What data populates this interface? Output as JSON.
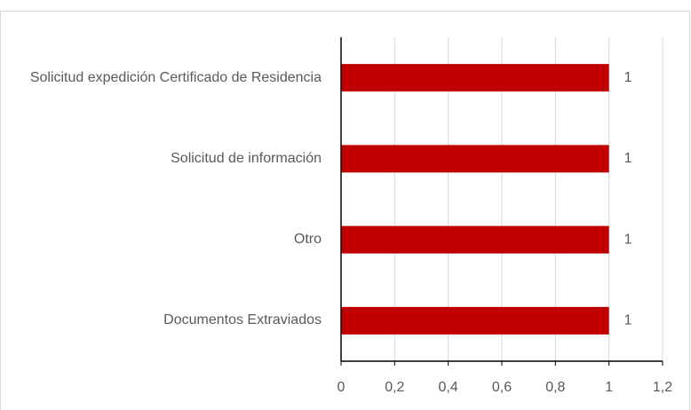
{
  "chart_data": {
    "type": "barh",
    "categories": [
      "Solicitud expedición Certificado de Residencia",
      "Solicitud de información",
      "Otro",
      "Documentos Extraviados"
    ],
    "values": [
      1,
      1,
      1,
      1
    ],
    "color": "#c00000",
    "xlim": [
      0,
      1.2
    ],
    "xticks": [
      0,
      {
        "value": 0.2,
        "label": "0,2"
      },
      {
        "value": 0.4,
        "label": "0,4"
      },
      {
        "value": 0.6,
        "label": "0,6"
      },
      {
        "value": 0.8,
        "label": "0,8"
      },
      1,
      {
        "value": 1.2,
        "label": "1,2"
      }
    ],
    "grid": true
  }
}
